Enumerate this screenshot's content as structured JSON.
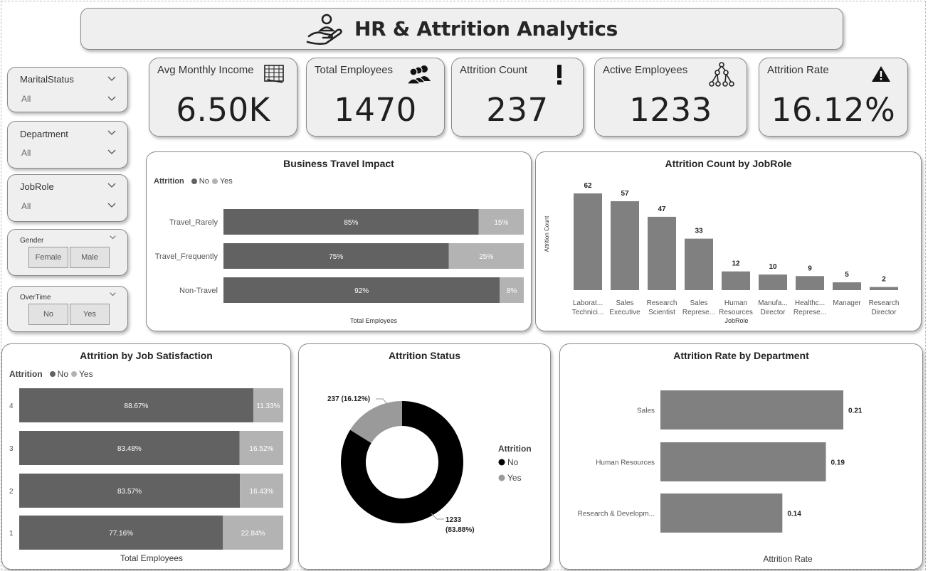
{
  "title": "HR & Attrition Analytics",
  "slicers": {
    "marital": {
      "label": "MaritalStatus",
      "value": "All"
    },
    "department": {
      "label": "Department",
      "value": "All"
    },
    "jobrole": {
      "label": "JobRole",
      "value": "All"
    },
    "gender": {
      "label": "Gender",
      "options": [
        "Female",
        "Male"
      ]
    },
    "overtime": {
      "label": "OverTime",
      "options": [
        "No",
        "Yes"
      ]
    }
  },
  "kpis": [
    {
      "label": "Avg Monthly Income",
      "value": "6.50K",
      "icon": "money-icon"
    },
    {
      "label": "Total Employees",
      "value": "1470",
      "icon": "people-icon"
    },
    {
      "label": "Attrition Count",
      "value": "237",
      "icon": "exclamation-icon"
    },
    {
      "label": "Active Employees",
      "value": "1233",
      "icon": "org-tree-icon"
    },
    {
      "label": "Attrition Rate",
      "value": "16.12%",
      "icon": "warning-icon"
    }
  ],
  "colors": {
    "no": "#626262",
    "yes": "#b3b3b3",
    "bar": "#808080",
    "donut_no": "#000000",
    "donut_yes": "#9a9a9a"
  },
  "legend": {
    "title": "Attrition",
    "no": "No",
    "yes": "Yes"
  },
  "chart_data": [
    {
      "id": "travel",
      "type": "bar",
      "orientation": "horizontal",
      "stacked": "100%",
      "title": "Business Travel Impact",
      "xlabel": "Total Employees",
      "categories": [
        "Travel_Rarely",
        "Travel_Frequently",
        "Non-Travel"
      ],
      "series": [
        {
          "name": "No",
          "values": [
            85,
            75,
            92
          ],
          "labels": [
            "85%",
            "75%",
            "92%"
          ]
        },
        {
          "name": "Yes",
          "values": [
            15,
            25,
            8
          ],
          "labels": [
            "15%",
            "25%",
            "8%"
          ]
        }
      ]
    },
    {
      "id": "jobrole",
      "type": "bar",
      "title": "Attrition Count by JobRole",
      "xlabel": "JobRole",
      "ylabel": "Attrition Count",
      "categories": [
        [
          "Laborat...",
          "Technici..."
        ],
        [
          "Sales",
          "Executive"
        ],
        [
          "Research",
          "Scientist"
        ],
        [
          "Sales",
          "Represe..."
        ],
        [
          "Human",
          "Resources"
        ],
        [
          "Manufa...",
          "Director"
        ],
        [
          "Healthc...",
          "Represe..."
        ],
        [
          "Manager"
        ],
        [
          "Research",
          "Director"
        ]
      ],
      "values": [
        62,
        57,
        47,
        33,
        12,
        10,
        9,
        5,
        2
      ],
      "ylim": [
        0,
        62
      ]
    },
    {
      "id": "satisfaction",
      "type": "bar",
      "orientation": "horizontal",
      "stacked": "100%",
      "title": "Attrition by Job Satisfaction",
      "xlabel": "Total Employees",
      "categories": [
        "4",
        "3",
        "2",
        "1"
      ],
      "series": [
        {
          "name": "No",
          "values": [
            88.67,
            83.48,
            83.57,
            77.16
          ],
          "labels": [
            "88.67%",
            "83.48%",
            "83.57%",
            "77.16%"
          ]
        },
        {
          "name": "Yes",
          "values": [
            11.33,
            16.52,
            16.43,
            22.84
          ],
          "labels": [
            "11.33%",
            "16.52%",
            "16.43%",
            "22.84%"
          ]
        }
      ]
    },
    {
      "id": "status",
      "type": "pie",
      "donut": true,
      "title": "Attrition Status",
      "slices": [
        {
          "name": "No",
          "value": 1233,
          "label_line1": "1233",
          "label_line2": "(83.88%)"
        },
        {
          "name": "Yes",
          "value": 237,
          "label_line1": "237 (16.12%)",
          "label_line2": ""
        }
      ],
      "legend_title": "Attrition"
    },
    {
      "id": "department",
      "type": "bar",
      "orientation": "horizontal",
      "title": "Attrition Rate by Department",
      "xlabel": "Attrition Rate",
      "categories": [
        "Sales",
        "Human Resources",
        "Research & Developm..."
      ],
      "values": [
        0.21,
        0.19,
        0.14
      ],
      "labels": [
        "0.21",
        "0.19",
        "0.14"
      ],
      "xlim": [
        0,
        0.21
      ]
    }
  ]
}
